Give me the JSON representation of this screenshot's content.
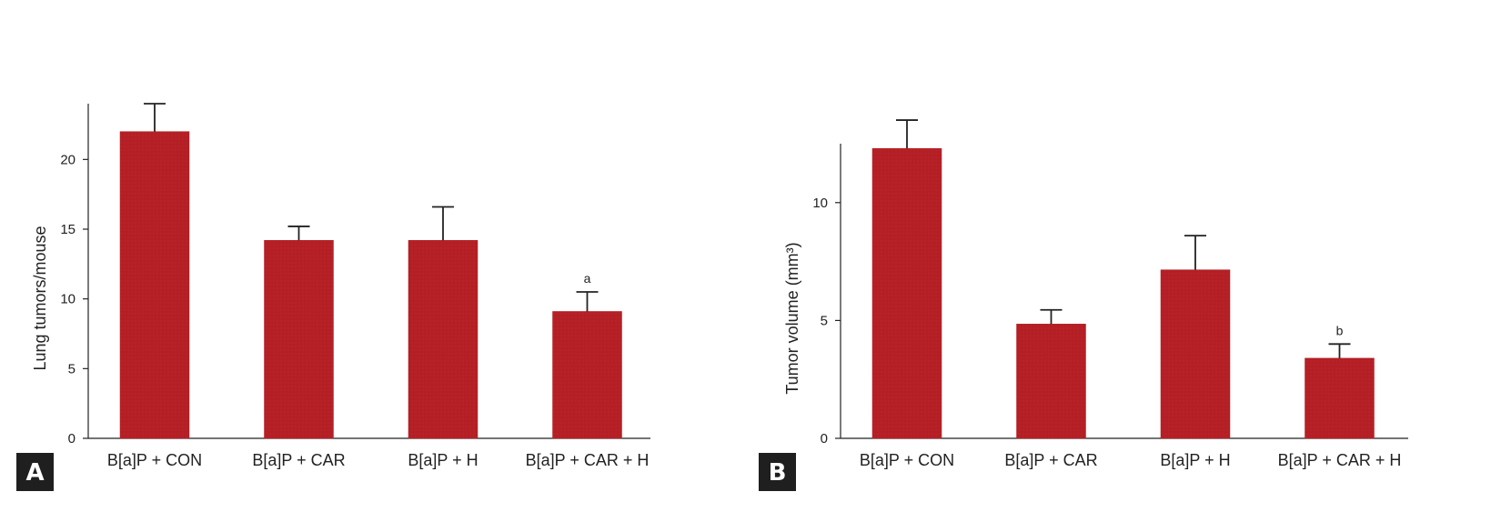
{
  "chart_data": [
    {
      "type": "bar",
      "panel_label": "A",
      "ylabel": "Lung tumors/mouse",
      "xlabel": "",
      "categories": [
        "B[a]P + CON",
        "B[a]P + CAR",
        "B[a]P + H",
        "B[a]P + CAR + H"
      ],
      "values": [
        22,
        14.2,
        14.2,
        9.1
      ],
      "errors": [
        2,
        1,
        2.4,
        1.4
      ],
      "annotations": [
        "",
        "",
        "",
        "a"
      ],
      "yticks": [
        0,
        5,
        10,
        15,
        20
      ],
      "ylim": [
        0,
        24
      ],
      "bar_color": "#b31f24",
      "grid": false
    },
    {
      "type": "bar",
      "panel_label": "B",
      "ylabel": "Tumor volume (mm³)",
      "xlabel": "",
      "categories": [
        "B[a]P + CON",
        "B[a]P + CAR",
        "B[a]P + H",
        "B[a]P + CAR + H"
      ],
      "values": [
        12.3,
        4.85,
        7.15,
        3.4
      ],
      "errors": [
        1.2,
        0.6,
        1.45,
        0.6
      ],
      "annotations": [
        "",
        "",
        "",
        "b"
      ],
      "yticks": [
        0,
        5,
        10
      ],
      "ylim": [
        0,
        12.5
      ],
      "bar_color": "#b31f24",
      "grid": false
    }
  ]
}
